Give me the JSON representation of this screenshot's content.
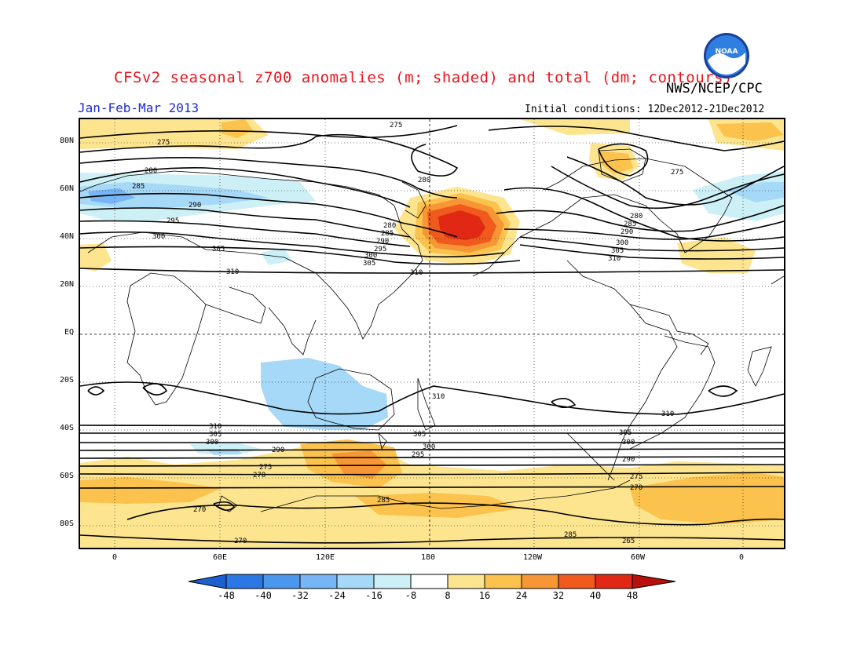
{
  "title": "CFSv2 seasonal z700 anomalies (m; shaded) and total (dm; contours)",
  "agency": "NWS/NCEP/CPC",
  "season": "Jan-Feb-Mar 2013",
  "initial_conditions": "Initial conditions: 12Dec2012-21Dec2012",
  "logo_text": "NOAA",
  "lat_labels": [
    "80N",
    "60N",
    "40N",
    "20N",
    "EQ",
    "20S",
    "40S",
    "60S",
    "80S"
  ],
  "lon_labels": [
    "0",
    "60E",
    "120E",
    "180",
    "120W",
    "60W",
    "0"
  ],
  "colorbar": {
    "ticks": [
      "-48",
      "-40",
      "-32",
      "-24",
      "-16",
      "-8",
      "8",
      "16",
      "24",
      "32",
      "40",
      "48"
    ],
    "colors": [
      "#1c5fd0",
      "#2b78e4",
      "#4b97ee",
      "#77b5f4",
      "#a6d8f7",
      "#cdf0f7",
      "#ffffff",
      "#fde58f",
      "#fbc24d",
      "#f79634",
      "#f05a1d",
      "#e02814",
      "#b8100c"
    ]
  },
  "contour_labels": [
    "275",
    "280",
    "285",
    "290",
    "295",
    "300",
    "305",
    "310",
    "270",
    "265"
  ]
}
